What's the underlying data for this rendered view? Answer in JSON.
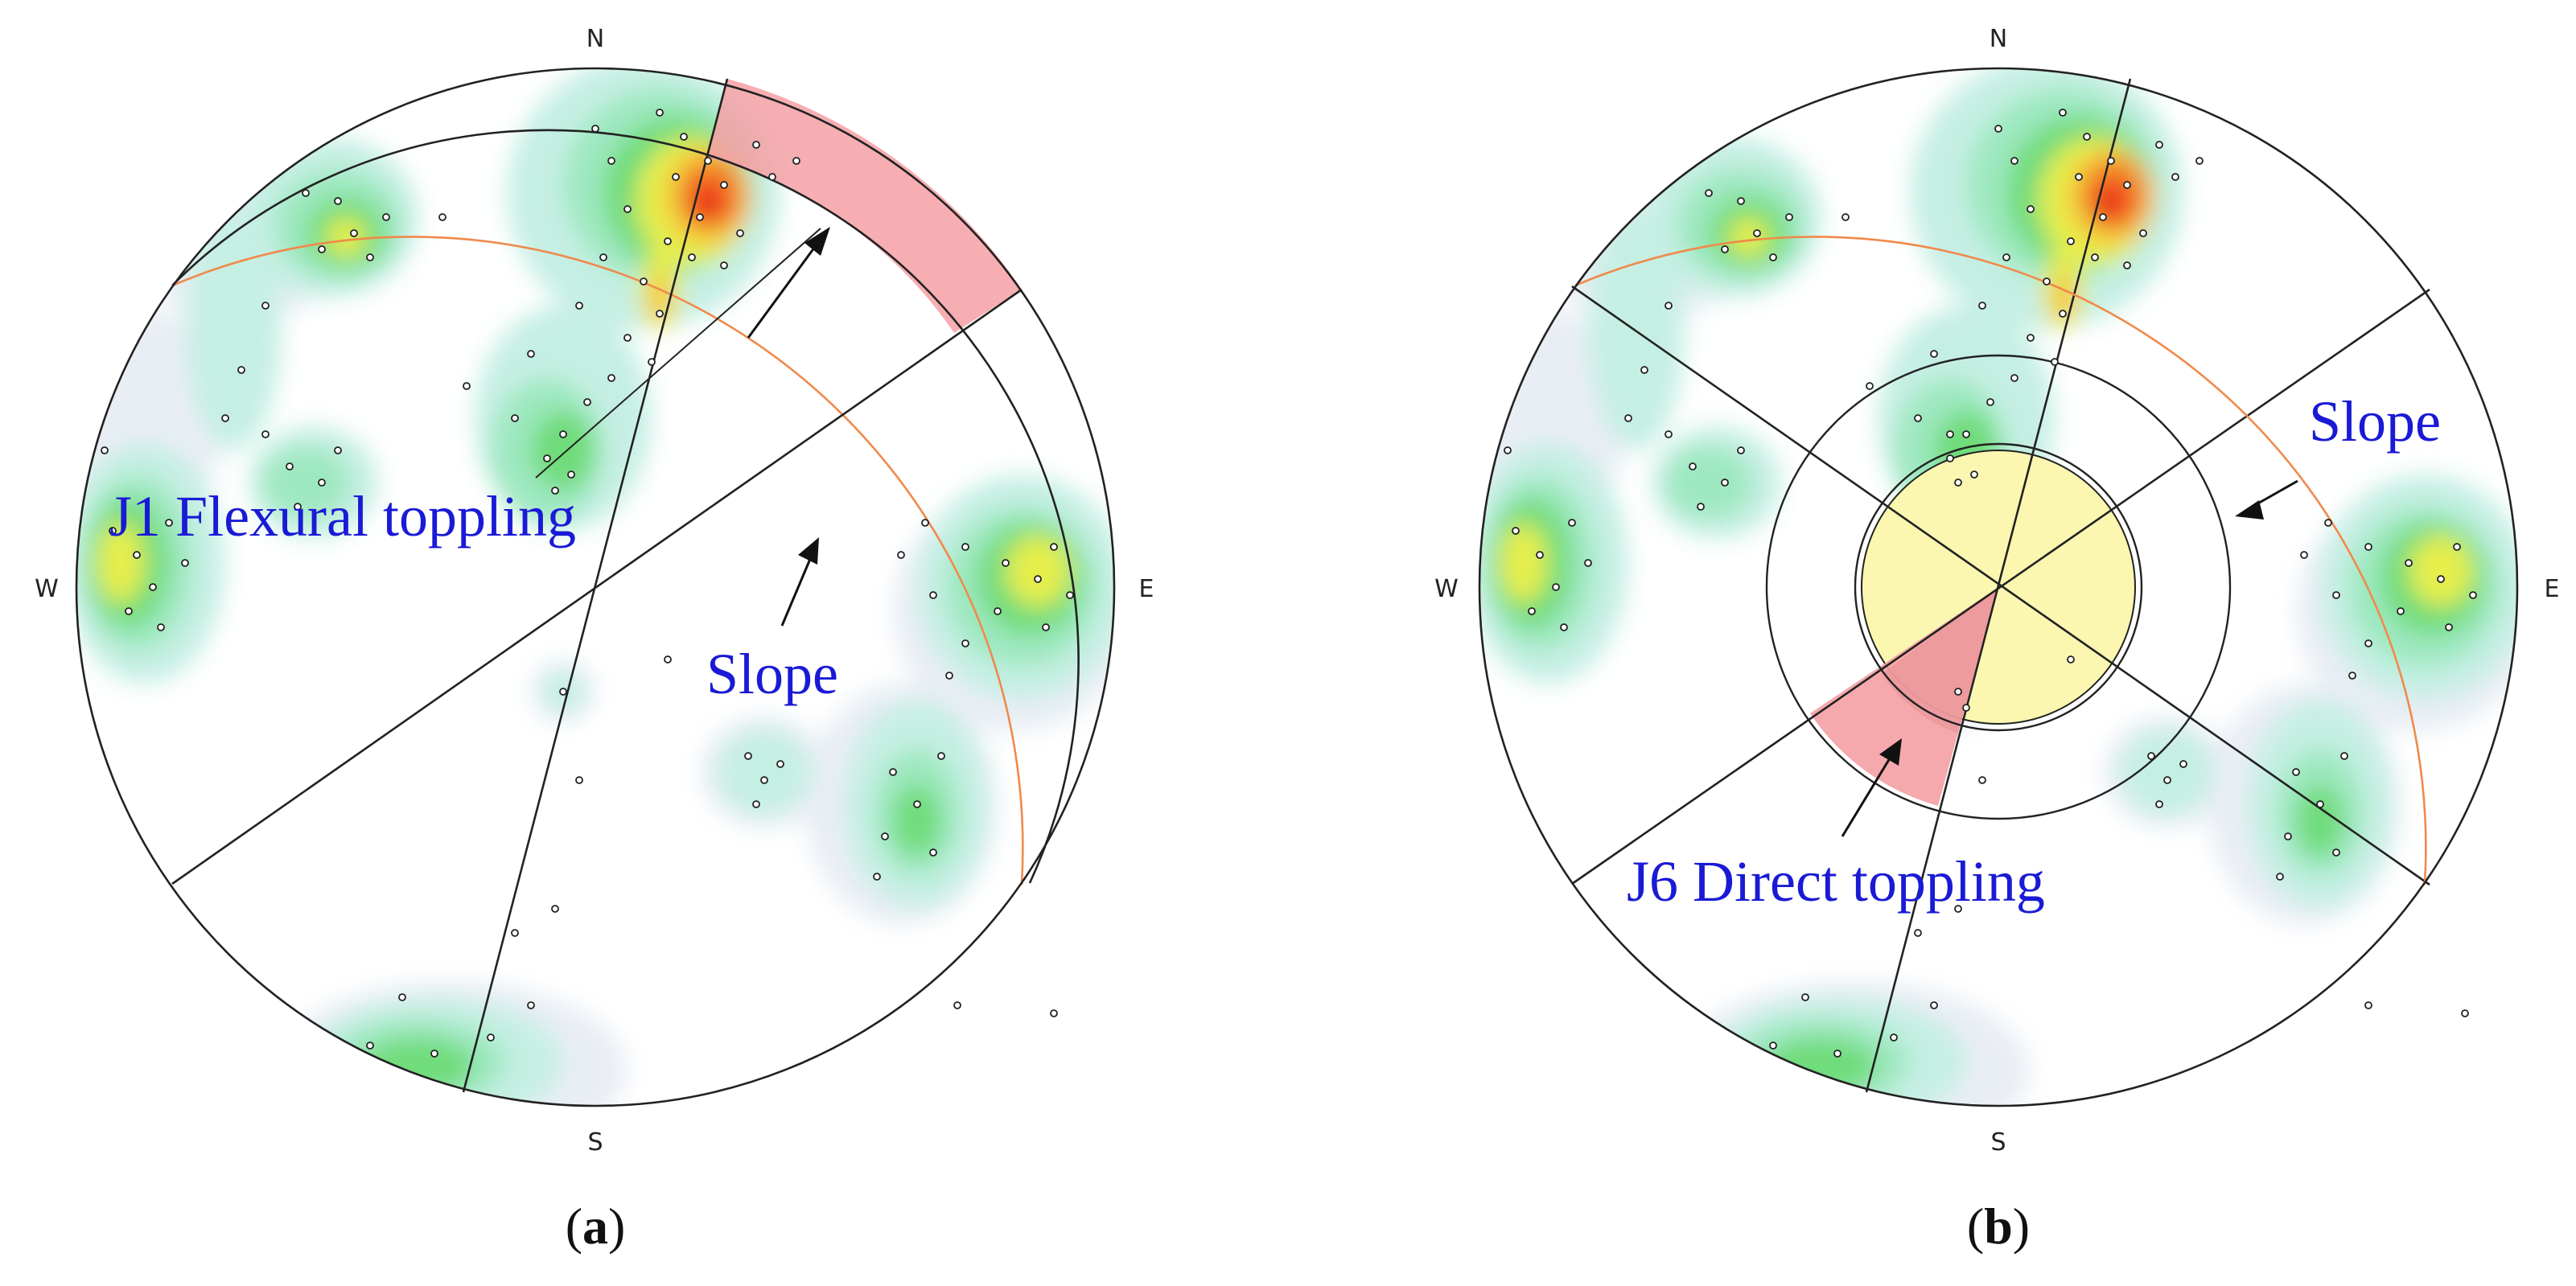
{
  "panels": [
    {
      "id": "a",
      "compass": {
        "n": "N",
        "s": "S",
        "e": "E",
        "w": "W"
      },
      "labels": {
        "main": "J1 Flexural toppling",
        "slope": "Slope"
      },
      "caption": {
        "open": "(",
        "letter": "a",
        "close": ")"
      },
      "colors": {
        "zone": "#f4a0a4",
        "slope_trace": "#f08a4b",
        "text": "#1a1ad6"
      }
    },
    {
      "id": "b",
      "compass": {
        "n": "N",
        "s": "S",
        "e": "E",
        "w": "W"
      },
      "labels": {
        "main": "J6 Direct toppling",
        "slope": "Slope"
      },
      "caption": {
        "open": "(",
        "letter": "b",
        "close": ")"
      },
      "colors": {
        "zone": "#f4a0a4",
        "friction_cone": "#fbf7b0",
        "slope_trace": "#f08a4b",
        "text": "#1a1ad6"
      }
    }
  ],
  "contour_colors": [
    "#e9eef4",
    "#c6efe4",
    "#9ee8c0",
    "#6fdc7a",
    "#e6ee4c",
    "#f6c63a",
    "#f38a2c",
    "#f0421f",
    "#e01010"
  ]
}
